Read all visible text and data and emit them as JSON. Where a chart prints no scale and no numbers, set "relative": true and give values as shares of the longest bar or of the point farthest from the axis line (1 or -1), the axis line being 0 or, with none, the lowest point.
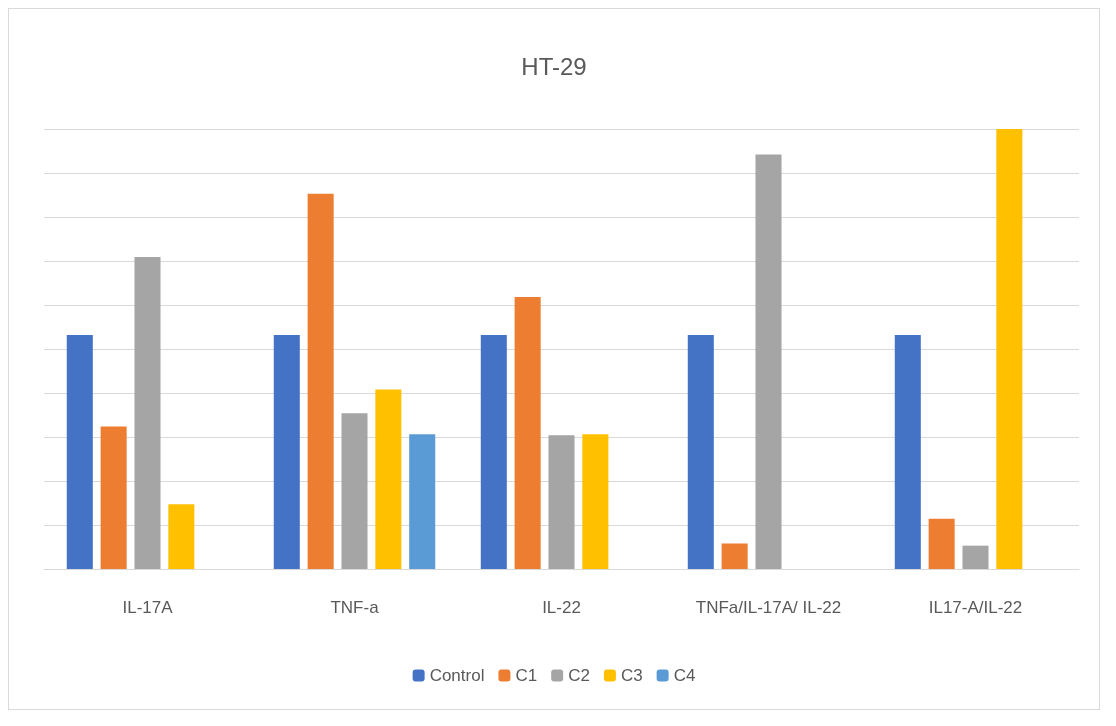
{
  "chart_data": {
    "type": "bar",
    "title": "HT-29",
    "relative": true,
    "grid": "y",
    "legend": "bottom",
    "categories": [
      "IL-17A",
      "TNF-a",
      "IL-22",
      "TNFa/IL-17A/ IL-22",
      "IL17-A/IL-22"
    ],
    "series": [
      {
        "name": "Control",
        "color": "#4472c4",
        "values": [
          0.532,
          0.532,
          0.532,
          0.532,
          0.532
        ]
      },
      {
        "name": "C1",
        "color": "#ed7d31",
        "values": [
          0.324,
          0.853,
          0.618,
          0.058,
          0.114
        ]
      },
      {
        "name": "C2",
        "color": "#a5a5a5",
        "values": [
          0.709,
          0.354,
          0.304,
          0.942,
          0.053
        ]
      },
      {
        "name": "C3",
        "color": "#ffc000",
        "values": [
          0.147,
          0.408,
          0.306,
          null,
          1.0
        ]
      },
      {
        "name": "C4",
        "color": "#5b9bd5",
        "values": [
          null,
          0.306,
          null,
          null,
          null
        ]
      }
    ]
  }
}
